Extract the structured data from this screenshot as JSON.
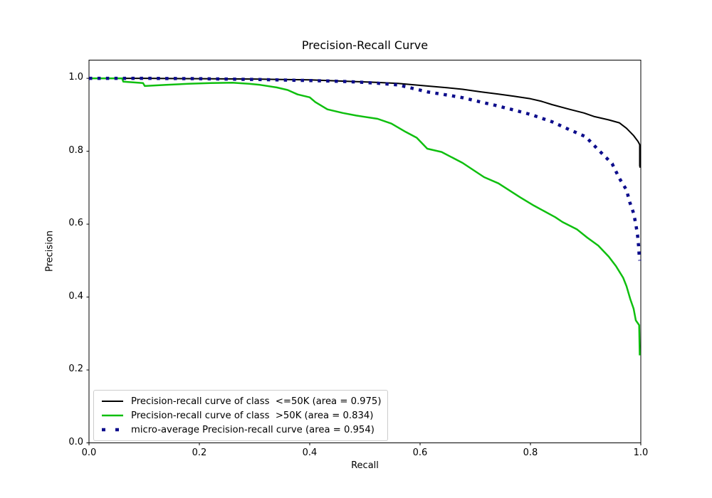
{
  "figure": {
    "title": "Precision-Recall Curve",
    "xlabel": "Recall",
    "ylabel": "Precision",
    "background": "#ffffff"
  },
  "chart_data": {
    "type": "line",
    "title": "Precision-Recall Curve",
    "xlabel": "Recall",
    "ylabel": "Precision",
    "xlim": [
      0.0,
      1.0
    ],
    "ylim": [
      0.0,
      1.05
    ],
    "x_ticks": [
      "0.0",
      "0.2",
      "0.4",
      "0.6",
      "0.8",
      "1.0"
    ],
    "y_ticks": [
      "0.0",
      "0.2",
      "0.4",
      "0.6",
      "0.8",
      "1.0"
    ],
    "grid": false,
    "legend_position": "lower left",
    "series": [
      {
        "name": "Precision-recall curve of class  <=50K (area = 0.975)",
        "class": "<=50K",
        "area": 0.975,
        "color": "#000000",
        "linestyle": "solid",
        "linewidth": 2,
        "points": [
          [
            0.0,
            1.0
          ],
          [
            0.05,
            1.0
          ],
          [
            0.1,
            1.0
          ],
          [
            0.15,
            0.9995
          ],
          [
            0.2,
            0.999
          ],
          [
            0.25,
            0.9985
          ],
          [
            0.3,
            0.998
          ],
          [
            0.35,
            0.997
          ],
          [
            0.4,
            0.996
          ],
          [
            0.45,
            0.993
          ],
          [
            0.484,
            0.991
          ],
          [
            0.52,
            0.989
          ],
          [
            0.56,
            0.986
          ],
          [
            0.613,
            0.979
          ],
          [
            0.65,
            0.974
          ],
          [
            0.677,
            0.97
          ],
          [
            0.71,
            0.963
          ],
          [
            0.742,
            0.957
          ],
          [
            0.77,
            0.951
          ],
          [
            0.8,
            0.944
          ],
          [
            0.82,
            0.937
          ],
          [
            0.839,
            0.928
          ],
          [
            0.871,
            0.915
          ],
          [
            0.897,
            0.905
          ],
          [
            0.916,
            0.895
          ],
          [
            0.942,
            0.886
          ],
          [
            0.961,
            0.878
          ],
          [
            0.974,
            0.863
          ],
          [
            0.987,
            0.843
          ],
          [
            0.995,
            0.827
          ],
          [
            0.998,
            0.818
          ],
          [
            0.998,
            0.76
          ],
          [
            0.999,
            0.755
          ]
        ]
      },
      {
        "name": "Precision-recall curve of class  >50K (area = 0.834)",
        "class": ">50K",
        "area": 0.834,
        "color": "#0fbf0f",
        "linestyle": "solid",
        "linewidth": 2.5,
        "points": [
          [
            0.0,
            1.0
          ],
          [
            0.06,
            1.0
          ],
          [
            0.062,
            0.991
          ],
          [
            0.098,
            0.987
          ],
          [
            0.101,
            0.979
          ],
          [
            0.14,
            0.982
          ],
          [
            0.18,
            0.985
          ],
          [
            0.22,
            0.987
          ],
          [
            0.26,
            0.988
          ],
          [
            0.29,
            0.985
          ],
          [
            0.31,
            0.982
          ],
          [
            0.34,
            0.975
          ],
          [
            0.36,
            0.968
          ],
          [
            0.378,
            0.956
          ],
          [
            0.4,
            0.948
          ],
          [
            0.41,
            0.935
          ],
          [
            0.432,
            0.915
          ],
          [
            0.46,
            0.905
          ],
          [
            0.484,
            0.898
          ],
          [
            0.523,
            0.889
          ],
          [
            0.548,
            0.876
          ],
          [
            0.574,
            0.853
          ],
          [
            0.594,
            0.837
          ],
          [
            0.613,
            0.807
          ],
          [
            0.639,
            0.798
          ],
          [
            0.677,
            0.768
          ],
          [
            0.716,
            0.729
          ],
          [
            0.742,
            0.712
          ],
          [
            0.781,
            0.674
          ],
          [
            0.806,
            0.651
          ],
          [
            0.845,
            0.619
          ],
          [
            0.858,
            0.606
          ],
          [
            0.884,
            0.586
          ],
          [
            0.903,
            0.563
          ],
          [
            0.923,
            0.541
          ],
          [
            0.942,
            0.511
          ],
          [
            0.955,
            0.485
          ],
          [
            0.968,
            0.453
          ],
          [
            0.974,
            0.43
          ],
          [
            0.981,
            0.394
          ],
          [
            0.987,
            0.368
          ],
          [
            0.991,
            0.336
          ],
          [
            0.997,
            0.323
          ],
          [
            0.998,
            0.24
          ]
        ]
      },
      {
        "name": "micro-average Precision-recall curve (area = 0.954)",
        "class": "micro-average",
        "area": 0.954,
        "color": "#0d0d8c",
        "linestyle": "dotted",
        "linewidth": 4.5,
        "points": [
          [
            0.0,
            1.0
          ],
          [
            0.05,
            1.0
          ],
          [
            0.1,
            1.0
          ],
          [
            0.15,
            0.9995
          ],
          [
            0.2,
            0.999
          ],
          [
            0.3,
            0.997
          ],
          [
            0.4,
            0.994
          ],
          [
            0.45,
            0.992
          ],
          [
            0.484,
            0.99
          ],
          [
            0.52,
            0.987
          ],
          [
            0.56,
            0.982
          ],
          [
            0.613,
            0.963
          ],
          [
            0.65,
            0.954
          ],
          [
            0.677,
            0.947
          ],
          [
            0.71,
            0.935
          ],
          [
            0.742,
            0.924
          ],
          [
            0.77,
            0.913
          ],
          [
            0.8,
            0.901
          ],
          [
            0.839,
            0.881
          ],
          [
            0.871,
            0.859
          ],
          [
            0.9,
            0.84
          ],
          [
            0.923,
            0.804
          ],
          [
            0.948,
            0.766
          ],
          [
            0.961,
            0.726
          ],
          [
            0.974,
            0.694
          ],
          [
            0.98,
            0.66
          ],
          [
            0.987,
            0.63
          ],
          [
            0.991,
            0.6
          ],
          [
            0.994,
            0.57
          ],
          [
            0.996,
            0.54
          ],
          [
            0.997,
            0.515
          ],
          [
            0.998,
            0.5
          ]
        ]
      }
    ]
  }
}
